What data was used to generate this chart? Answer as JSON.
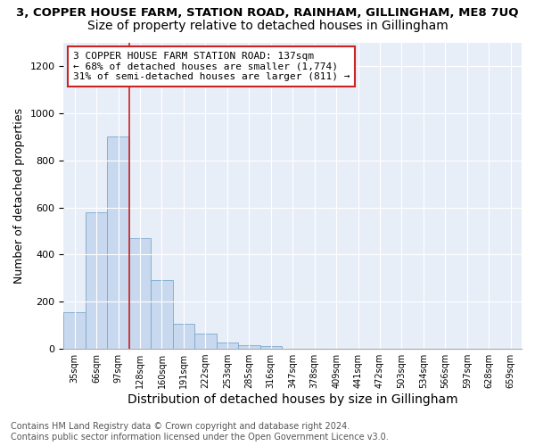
{
  "title1": "3, COPPER HOUSE FARM, STATION ROAD, RAINHAM, GILLINGHAM, ME8 7UQ",
  "title2": "Size of property relative to detached houses in Gillingham",
  "xlabel": "Distribution of detached houses by size in Gillingham",
  "ylabel": "Number of detached properties",
  "categories": [
    "35sqm",
    "66sqm",
    "97sqm",
    "128sqm",
    "160sqm",
    "191sqm",
    "222sqm",
    "253sqm",
    "285sqm",
    "316sqm",
    "347sqm",
    "378sqm",
    "409sqm",
    "441sqm",
    "472sqm",
    "503sqm",
    "534sqm",
    "566sqm",
    "597sqm",
    "628sqm",
    "659sqm"
  ],
  "values": [
    155,
    580,
    900,
    470,
    290,
    105,
    65,
    28,
    15,
    12,
    0,
    0,
    0,
    0,
    0,
    0,
    0,
    0,
    0,
    0,
    0
  ],
  "bar_color": "#c8d8ee",
  "bar_edge_color": "#7aa8cc",
  "vline_color": "#cc2222",
  "vline_index": 3,
  "annotation_text": "3 COPPER HOUSE FARM STATION ROAD: 137sqm\n← 68% of detached houses are smaller (1,774)\n31% of semi-detached houses are larger (811) →",
  "annotation_box_color": "#ffffff",
  "annotation_box_edge": "#cc2222",
  "ylim": [
    0,
    1300
  ],
  "yticks": [
    0,
    200,
    400,
    600,
    800,
    1000,
    1200
  ],
  "footer": "Contains HM Land Registry data © Crown copyright and database right 2024.\nContains public sector information licensed under the Open Government Licence v3.0.",
  "title1_fontsize": 9.5,
  "title2_fontsize": 10,
  "xlabel_fontsize": 10,
  "ylabel_fontsize": 9,
  "footer_fontsize": 7,
  "bg_color": "#e8eef8"
}
